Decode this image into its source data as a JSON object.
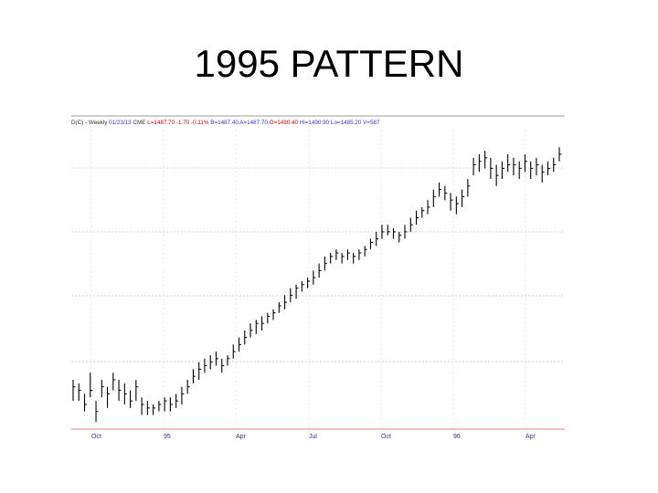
{
  "slide": {
    "title": "1995 PATTERN"
  },
  "chart_data": {
    "type": "bar",
    "style": "ohlc",
    "header": [
      {
        "text": "D(C) - Weekly",
        "color": "#333333"
      },
      {
        "text": "01/23/13",
        "color": "#3333cc"
      },
      {
        "text": "CME",
        "color": "#333333"
      },
      {
        "text": "L=1487.70",
        "color": "#cc0000"
      },
      {
        "text": "-1.70",
        "color": "#cc0000"
      },
      {
        "text": "-0.11%",
        "color": "#cc0000"
      },
      {
        "text": "B=1487.40",
        "color": "#3333cc"
      },
      {
        "text": "A=1487.70",
        "color": "#3333cc"
      },
      {
        "text": "O=1490.40",
        "color": "#cc0000"
      },
      {
        "text": "Hi=1490.90",
        "color": "#3333cc"
      },
      {
        "text": "Lo=1485.20",
        "color": "#3333cc"
      },
      {
        "text": "V=587",
        "color": "#3333cc"
      }
    ],
    "x_tick_labels": [
      "Oct",
      "95",
      "Apr",
      "Jul",
      "Oct",
      "96",
      "Apr"
    ],
    "grid": true,
    "baseline_color": "#e08080",
    "bar_color": "#000000",
    "series": [
      {
        "values": [
          [
            64,
            62,
            58
          ],
          [
            63,
            61,
            58
          ],
          [
            60,
            57,
            55
          ],
          [
            66,
            61,
            59
          ],
          [
            58,
            55,
            52
          ],
          [
            64,
            62,
            59
          ],
          [
            62,
            60,
            56
          ],
          [
            66,
            64,
            61
          ],
          [
            64,
            61,
            58
          ],
          [
            63,
            60,
            57
          ],
          [
            61,
            58,
            56
          ],
          [
            64,
            62,
            58
          ],
          [
            59,
            57,
            54
          ],
          [
            58,
            56,
            54
          ],
          [
            57,
            56,
            54
          ],
          [
            58,
            57,
            55
          ],
          [
            59,
            58,
            55
          ],
          [
            59,
            57,
            55
          ],
          [
            60,
            58,
            56
          ],
          [
            62,
            60,
            57
          ],
          [
            64,
            62,
            60
          ],
          [
            67,
            65,
            63
          ],
          [
            69,
            67,
            64
          ],
          [
            70,
            68,
            66
          ],
          [
            71,
            69,
            67
          ],
          [
            72,
            70,
            68
          ],
          [
            70,
            68,
            66
          ],
          [
            71,
            70,
            68
          ],
          [
            74,
            72,
            70
          ],
          [
            76,
            74,
            72
          ],
          [
            78,
            76,
            74
          ],
          [
            80,
            78,
            76
          ],
          [
            81,
            80,
            77
          ],
          [
            82,
            80,
            78
          ],
          [
            83,
            82,
            80
          ],
          [
            84,
            83,
            81
          ],
          [
            86,
            85,
            83
          ],
          [
            88,
            86,
            84
          ],
          [
            90,
            88,
            86
          ],
          [
            91,
            90,
            87
          ],
          [
            92,
            91,
            89
          ],
          [
            93,
            92,
            90
          ],
          [
            95,
            93,
            91
          ],
          [
            97,
            95,
            93
          ],
          [
            99,
            97,
            95
          ],
          [
            100,
            99,
            97
          ],
          [
            101,
            100,
            98
          ],
          [
            100,
            99,
            97
          ],
          [
            101,
            100,
            98
          ],
          [
            100,
            99,
            97
          ],
          [
            101,
            100,
            98
          ],
          [
            102,
            101,
            99
          ],
          [
            104,
            103,
            101
          ],
          [
            106,
            104,
            102
          ],
          [
            108,
            106,
            104
          ],
          [
            108,
            106,
            105
          ],
          [
            107,
            106,
            104
          ],
          [
            106,
            105,
            103
          ],
          [
            108,
            106,
            104
          ],
          [
            110,
            108,
            106
          ],
          [
            112,
            110,
            108
          ],
          [
            113,
            112,
            110
          ],
          [
            115,
            113,
            111
          ],
          [
            118,
            116,
            113
          ],
          [
            120,
            118,
            116
          ],
          [
            119,
            117,
            115
          ],
          [
            117,
            115,
            112
          ],
          [
            116,
            114,
            111
          ],
          [
            118,
            116,
            113
          ],
          [
            121,
            119,
            116
          ],
          [
            127,
            125,
            122
          ],
          [
            128,
            126,
            123
          ],
          [
            129,
            127,
            124
          ],
          [
            127,
            124,
            121
          ],
          [
            125,
            122,
            119
          ],
          [
            126,
            124,
            121
          ],
          [
            128,
            125,
            123
          ],
          [
            127,
            125,
            122
          ],
          [
            126,
            124,
            121
          ],
          [
            128,
            126,
            123
          ],
          [
            126,
            124,
            121
          ],
          [
            127,
            125,
            122
          ],
          [
            125,
            123,
            120
          ],
          [
            126,
            124,
            122
          ],
          [
            127,
            125,
            123
          ],
          [
            130,
            128,
            126
          ]
        ]
      }
    ],
    "ylim": [
      50,
      135
    ]
  }
}
